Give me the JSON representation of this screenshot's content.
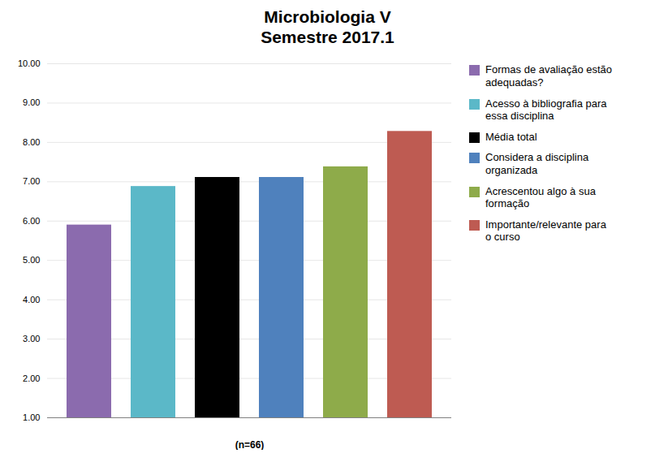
{
  "chart_data": {
    "type": "bar",
    "title": "Microbiologia V\nSemestre 2017.1",
    "xlabel": "(n=66)",
    "categories": [
      "Formas de avaliação estão\nadequadas?",
      "Acesso à bibliografia para\nessa disciplina",
      "Média total",
      "Considera a disciplina\norganizada",
      "Acrescentou algo à sua\nformação",
      "Importante/relevante para\no curso"
    ],
    "values": [
      5.9,
      6.88,
      7.11,
      7.11,
      7.38,
      8.28
    ],
    "colors": [
      "#8B6BAE",
      "#5BB8C8",
      "#000000",
      "#4F81BD",
      "#8EAB4A",
      "#BE5B52"
    ],
    "ylim": [
      1.0,
      10.0
    ],
    "yticks": [
      {
        "value": 1.0,
        "label": "1.00"
      },
      {
        "value": 2.0,
        "label": "2.00"
      },
      {
        "value": 3.0,
        "label": "3.00"
      },
      {
        "value": 4.0,
        "label": "4.00"
      },
      {
        "value": 5.0,
        "label": "5.00"
      },
      {
        "value": 6.0,
        "label": "6.00"
      },
      {
        "value": 7.0,
        "label": "7.00"
      },
      {
        "value": 8.0,
        "label": "8.00"
      },
      {
        "value": 9.0,
        "label": "9.00"
      },
      {
        "value": 10.0,
        "label": "10.00"
      }
    ],
    "grid": true,
    "legend": "right",
    "tick_labels": "y"
  }
}
